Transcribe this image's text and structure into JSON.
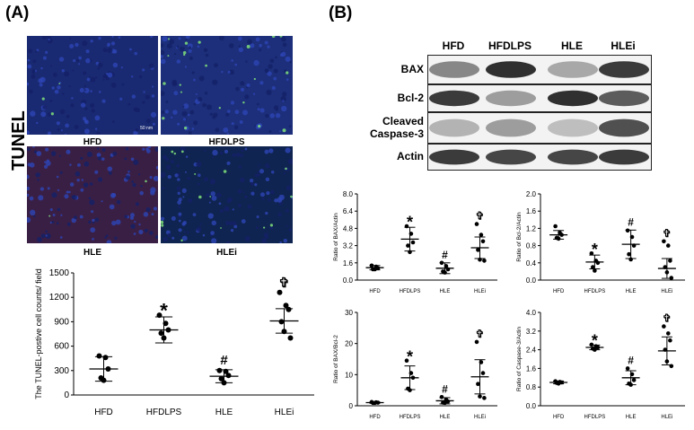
{
  "panel_a": {
    "letter": "(A)",
    "side_label": "TUNEL",
    "scale_bar": "50 nm",
    "images": [
      {
        "label": "HFD",
        "tone": "#1a2a72",
        "green": 0.05
      },
      {
        "label": "HFDLPS",
        "tone": "#1d2f7a",
        "green": 0.35
      },
      {
        "label": "HLE",
        "tone": "#3a1f45",
        "green": 0.03
      },
      {
        "label": "HLEi",
        "tone": "#0f2450",
        "green": 0.25
      }
    ]
  },
  "panel_b": {
    "letter": "(B)",
    "lanes": [
      "HFD",
      "HFDLPS",
      "HLE",
      "HLEi"
    ],
    "blots": [
      {
        "label": "BAX",
        "intensity": [
          0.55,
          0.95,
          0.4,
          0.9
        ]
      },
      {
        "label": "Bcl-2",
        "intensity": [
          0.9,
          0.45,
          0.95,
          0.75
        ]
      },
      {
        "label": "Cleaved\nCaspase-3",
        "intensity": [
          0.35,
          0.45,
          0.3,
          0.8
        ]
      },
      {
        "label": "Actin",
        "intensity": [
          0.9,
          0.85,
          0.85,
          0.9
        ]
      }
    ]
  },
  "chart_data": [
    {
      "type": "scatter",
      "id": "tunel",
      "ylabel": "The TUNEL-postive cell counts/ field",
      "categories": [
        "HFD",
        "HFDLPS",
        "HLE",
        "HLEi"
      ],
      "ylim": [
        0,
        1500
      ],
      "yticks": [
        0,
        300,
        600,
        900,
        1200,
        1500
      ],
      "tick_labels": [
        "0",
        "300",
        "600",
        "900",
        "1200",
        "1500"
      ],
      "means": [
        320,
        800,
        230,
        910
      ],
      "sd": [
        150,
        160,
        80,
        150
      ],
      "points": [
        [
          480,
          460,
          320,
          210,
          180
        ],
        [
          980,
          880,
          800,
          760,
          700
        ],
        [
          300,
          290,
          240,
          200,
          150
        ],
        [
          1260,
          1100,
          1050,
          900,
          780,
          700
        ]
      ],
      "annotations": [
        "",
        "*",
        "#",
        "✞"
      ]
    },
    {
      "type": "scatter",
      "id": "bax-actin",
      "ylabel": "Ratio of BAX/Actin",
      "categories": [
        "HFD",
        "HFDLPS",
        "HLE",
        "HLEi"
      ],
      "ylim": [
        0,
        8
      ],
      "yticks": [
        0,
        1.6,
        3.2,
        4.8,
        6.4,
        8
      ],
      "tick_labels": [
        "0.0",
        "1.6",
        "3.2",
        "4.8",
        "6.4",
        "8.0"
      ],
      "means": [
        1.15,
        3.8,
        1.1,
        3.0
      ],
      "sd": [
        0.2,
        1.1,
        0.5,
        1.0
      ],
      "points": [
        [
          1.35,
          1.25,
          1.1,
          1.0,
          1.0
        ],
        [
          5.0,
          4.3,
          3.5,
          3.2,
          2.6
        ],
        [
          1.6,
          1.3,
          1.0,
          0.8,
          0.7
        ],
        [
          5.2,
          4.2,
          3.6,
          2.8,
          1.9,
          1.8
        ]
      ],
      "annotations": [
        "",
        "*",
        "#",
        "✞"
      ]
    },
    {
      "type": "scatter",
      "id": "bcl2-actin",
      "ylabel": "Ratio of Bcl-2/Actin",
      "categories": [
        "HFD",
        "HFDLPS",
        "HLE",
        "HLEi"
      ],
      "ylim": [
        0,
        2
      ],
      "yticks": [
        0,
        0.4,
        0.8,
        1.2,
        1.6,
        2.0
      ],
      "tick_labels": [
        "0.0",
        "0.4",
        "0.8",
        "1.2",
        "1.6",
        "2.0"
      ],
      "means": [
        1.05,
        0.42,
        0.83,
        0.27
      ],
      "sd": [
        0.1,
        0.16,
        0.33,
        0.23
      ],
      "points": [
        [
          1.25,
          1.1,
          1.05,
          0.98,
          0.96
        ],
        [
          0.62,
          0.45,
          0.4,
          0.3,
          0.22
        ],
        [
          1.15,
          1.0,
          0.8,
          0.6,
          0.48
        ],
        [
          0.9,
          0.8,
          0.45,
          0.3,
          0.18,
          0.05
        ]
      ],
      "annotations": [
        "",
        "*",
        "#",
        "✞"
      ]
    },
    {
      "type": "scatter",
      "id": "bax-bcl2",
      "ylabel": "Ratio of BAX/Bcl-2",
      "categories": [
        "HFD",
        "HFDLPS",
        "HLE",
        "HLEi"
      ],
      "ylim": [
        0,
        30
      ],
      "yticks": [
        0,
        10,
        20,
        30
      ],
      "tick_labels": [
        "0",
        "10",
        "20",
        "30"
      ],
      "means": [
        1.0,
        9.0,
        1.6,
        9.3
      ],
      "sd": [
        0.2,
        3.8,
        1.0,
        5.5
      ],
      "points": [
        [
          1.2,
          1.1,
          1.0,
          0.9,
          0.9
        ],
        [
          14.5,
          10.5,
          9.0,
          5.5,
          5.0
        ],
        [
          2.8,
          2.0,
          1.4,
          1.0,
          0.9
        ],
        [
          20.5,
          14.0,
          10.5,
          7.0,
          3.0,
          2.5
        ]
      ],
      "annotations": [
        "",
        "*",
        "#",
        "✞"
      ]
    },
    {
      "type": "scatter",
      "id": "casp3-actin",
      "ylabel": "Ratio of Caspase-3/Actin",
      "categories": [
        "HFD",
        "HFDLPS",
        "HLE",
        "HLEi"
      ],
      "ylim": [
        0,
        4
      ],
      "yticks": [
        0,
        0.8,
        1.6,
        2.4,
        3.2,
        4.0
      ],
      "tick_labels": [
        "0.0",
        "0.8",
        "1.6",
        "2.4",
        "3.2",
        "4.0"
      ],
      "means": [
        1.0,
        2.5,
        1.2,
        2.35
      ],
      "sd": [
        0.06,
        0.1,
        0.3,
        0.6
      ],
      "points": [
        [
          1.05,
          1.02,
          1.0,
          0.98,
          0.95
        ],
        [
          2.62,
          2.55,
          2.5,
          2.45,
          2.4
        ],
        [
          1.6,
          1.35,
          1.1,
          0.95,
          0.9
        ],
        [
          3.4,
          3.1,
          2.8,
          2.4,
          1.9,
          1.7
        ]
      ],
      "annotations": [
        "",
        "*",
        "#",
        "✞"
      ]
    }
  ]
}
